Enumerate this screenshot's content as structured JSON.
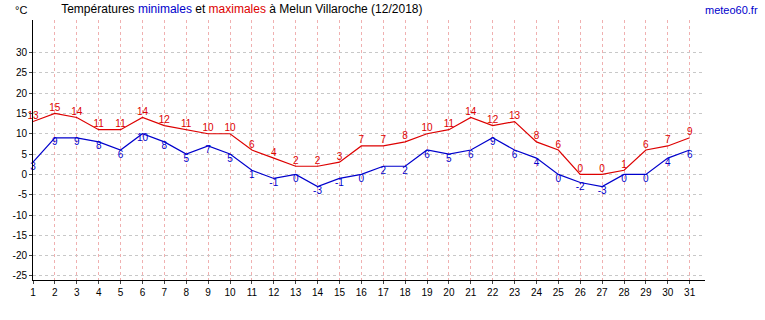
{
  "chart_data": {
    "type": "line",
    "title": "Températures minimales et maximales à Melun Villaroche (12/2018)",
    "ylabel": "°C",
    "annotations": [
      "meteo60.fr"
    ],
    "x": [
      1,
      2,
      3,
      4,
      5,
      6,
      7,
      8,
      9,
      10,
      11,
      12,
      13,
      14,
      15,
      16,
      17,
      18,
      19,
      20,
      21,
      22,
      23,
      24,
      25,
      26,
      27,
      28,
      29,
      30,
      31
    ],
    "series": [
      {
        "name": "minimales",
        "color": "#0000cc",
        "values": [
          3,
          9,
          9,
          8,
          6,
          10,
          8,
          5,
          7,
          5,
          1,
          -1,
          0,
          -3,
          -1,
          0,
          2,
          2,
          6,
          5,
          6,
          9,
          6,
          4,
          0,
          -2,
          -3,
          0,
          0,
          4,
          6
        ]
      },
      {
        "name": "maximales",
        "color": "#dd0000",
        "values": [
          13,
          15,
          14,
          11,
          11,
          14,
          12,
          11,
          10,
          10,
          6,
          4,
          2,
          2,
          3,
          7,
          7,
          8,
          10,
          11,
          14,
          12,
          13,
          8,
          6,
          0,
          0,
          1,
          6,
          7,
          9
        ]
      }
    ],
    "xlim": [
      1,
      31.7
    ],
    "xticks": [
      1,
      2,
      3,
      4,
      5,
      6,
      7,
      8,
      9,
      10,
      11,
      12,
      13,
      14,
      15,
      16,
      17,
      18,
      19,
      20,
      21,
      22,
      23,
      24,
      25,
      26,
      27,
      28,
      29,
      30,
      31
    ],
    "ylim": [
      -26,
      38
    ],
    "yticks": [
      -25,
      -20,
      -15,
      -10,
      -5,
      0,
      5,
      10,
      15,
      20,
      25,
      30
    ],
    "grid": true,
    "data_labels": true
  }
}
